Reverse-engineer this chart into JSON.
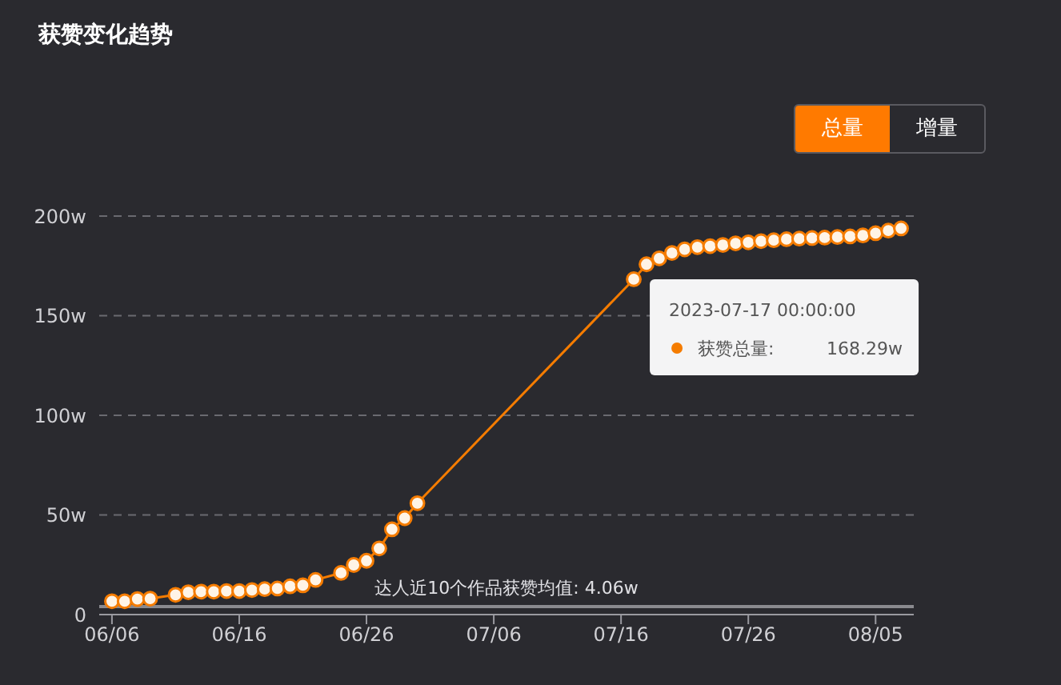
{
  "chart_data": {
    "type": "line",
    "title": "获赞变化趋势",
    "x": [
      "2023-06-06",
      "2023-06-07",
      "2023-06-08",
      "2023-06-09",
      "2023-06-11",
      "2023-06-12",
      "2023-06-13",
      "2023-06-14",
      "2023-06-15",
      "2023-06-16",
      "2023-06-17",
      "2023-06-18",
      "2023-06-19",
      "2023-06-20",
      "2023-06-21",
      "2023-06-22",
      "2023-06-24",
      "2023-06-25",
      "2023-06-26",
      "2023-06-27",
      "2023-06-28",
      "2023-06-29",
      "2023-06-30",
      "2023-07-17",
      "2023-07-18",
      "2023-07-19",
      "2023-07-20",
      "2023-07-21",
      "2023-07-22",
      "2023-07-23",
      "2023-07-24",
      "2023-07-25",
      "2023-07-26",
      "2023-07-27",
      "2023-07-28",
      "2023-07-29",
      "2023-07-30",
      "2023-07-31",
      "2023-08-01",
      "2023-08-02",
      "2023-08-03",
      "2023-08-04",
      "2023-08-05",
      "2023-08-06",
      "2023-08-07"
    ],
    "series": [
      {
        "color": "#f57c00",
        "values": [
          6.7,
          6.7,
          7.8,
          8.0,
          9.9,
          11.2,
          11.5,
          11.5,
          11.8,
          11.8,
          12.3,
          12.8,
          13.1,
          14.2,
          14.7,
          17.4,
          20.9,
          24.9,
          27.0,
          33.2,
          42.8,
          48.4,
          55.9,
          168.29,
          175.8,
          178.8,
          181.5,
          183.3,
          184.4,
          184.9,
          185.5,
          186.3,
          186.8,
          187.4,
          187.9,
          188.4,
          188.7,
          189.0,
          189.2,
          189.5,
          189.8,
          190.3,
          191.4,
          192.7,
          193.8
        ]
      }
    ],
    "xlim": [
      "2023-06-05",
      "2023-08-08"
    ],
    "xticks": [
      {
        "value": "2023-06-06",
        "label": "06/06"
      },
      {
        "value": "2023-06-16",
        "label": "06/16"
      },
      {
        "value": "2023-06-26",
        "label": "06/26"
      },
      {
        "value": "2023-07-06",
        "label": "07/06"
      },
      {
        "value": "2023-07-16",
        "label": "07/16"
      },
      {
        "value": "2023-07-26",
        "label": "07/26"
      },
      {
        "value": "2023-08-05",
        "label": "08/05"
      }
    ],
    "ylim": [
      0,
      200
    ],
    "yticks": [
      0,
      {
        "value": 50,
        "label": "50w"
      },
      {
        "value": 100,
        "label": "100w"
      },
      {
        "value": 150,
        "label": "150w"
      },
      {
        "value": 200,
        "label": "200w"
      }
    ],
    "grid": "y",
    "legend": false,
    "marker": "circle",
    "line_style": "solid",
    "ref_lines": [
      {
        "axis": "y",
        "value": 4.06,
        "label": "达人近10个作品获赞均值: 4.06w",
        "color": "#8a8a8f",
        "line_style": "solid"
      }
    ],
    "annotations": [
      "总量",
      "增量",
      {
        "text": "2023-07-17 00:00:00",
        "x": "2023-07-17",
        "y": 168.29
      },
      "获赞总量:",
      "168.29w"
    ]
  }
}
